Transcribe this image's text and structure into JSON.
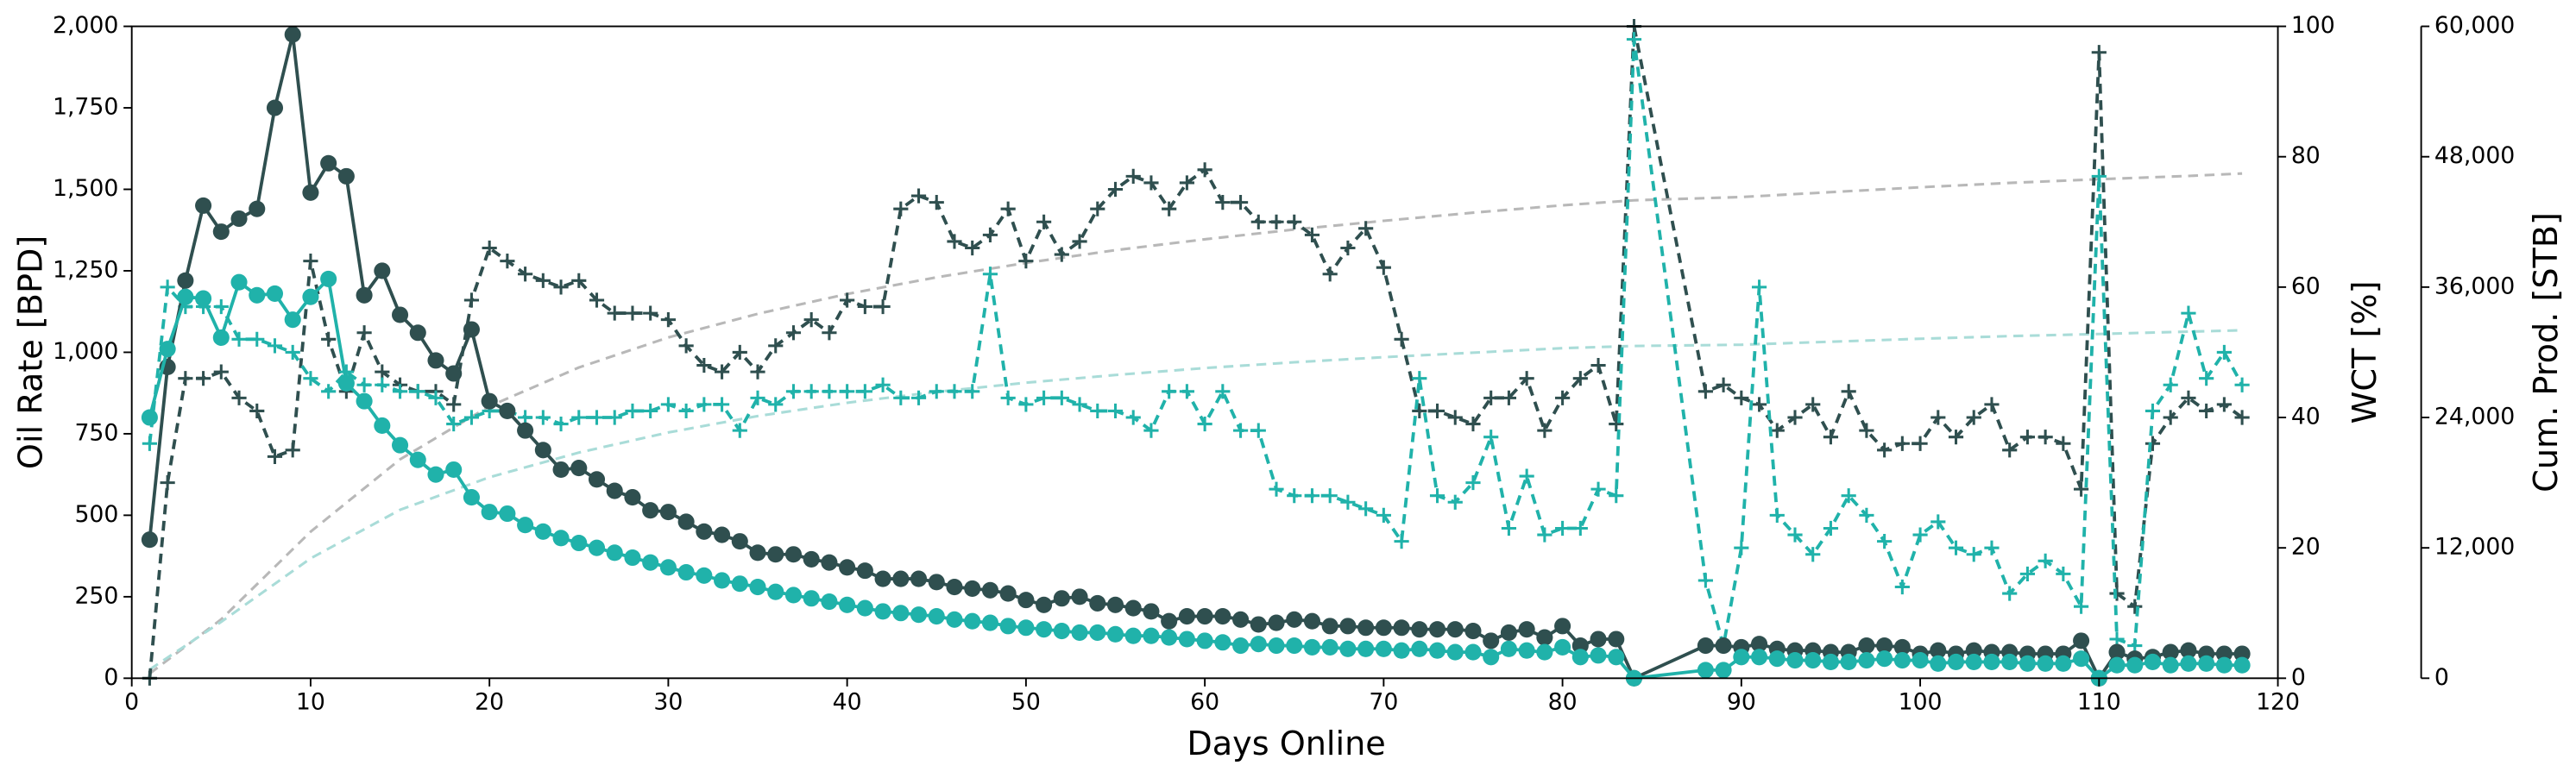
{
  "chart_data": {
    "type": "line",
    "xlabel": "Days Online",
    "ylabel": "Oil Rate [BPD]",
    "y2label": "WCT [%]",
    "y3label": "Cum. Prod. [STB]",
    "xlim": [
      0,
      120
    ],
    "xticks": [
      0,
      10,
      20,
      30,
      40,
      50,
      60,
      70,
      80,
      90,
      100,
      110,
      120
    ],
    "ylim": [
      0,
      2000
    ],
    "yticks": [
      0,
      250,
      500,
      750,
      {
        "value": 1000,
        "label": "1,000"
      },
      {
        "value": 1250,
        "label": "1,250"
      },
      {
        "value": 1500,
        "label": "1,500"
      },
      {
        "value": 1750,
        "label": "1,750"
      },
      {
        "value": 2000,
        "label": "2,000"
      }
    ],
    "y2lim": [
      0,
      100
    ],
    "y2ticks": [
      0,
      20,
      40,
      60,
      80,
      100
    ],
    "y3lim": [
      0,
      60000
    ],
    "y3ticks": [
      0,
      {
        "value": 12000,
        "label": "12,000"
      },
      {
        "value": 24000,
        "label": "24,000"
      },
      {
        "value": 36000,
        "label": "36,000"
      },
      {
        "value": 48000,
        "label": "48,000"
      },
      {
        "value": 60000,
        "label": "60,000"
      }
    ],
    "grid": false,
    "x": [
      1,
      2,
      3,
      4,
      5,
      6,
      7,
      8,
      9,
      10,
      11,
      12,
      13,
      14,
      15,
      16,
      17,
      18,
      19,
      20,
      21,
      22,
      23,
      24,
      25,
      26,
      27,
      28,
      29,
      30,
      31,
      32,
      33,
      34,
      35,
      36,
      37,
      38,
      39,
      40,
      41,
      42,
      43,
      44,
      45,
      46,
      47,
      48,
      49,
      50,
      51,
      52,
      53,
      54,
      55,
      56,
      57,
      58,
      59,
      60,
      61,
      62,
      63,
      64,
      65,
      66,
      67,
      68,
      69,
      70,
      71,
      72,
      73,
      74,
      75,
      76,
      77,
      78,
      79,
      80,
      81,
      82,
      83,
      84,
      88,
      89,
      90,
      91,
      92,
      93,
      94,
      95,
      96,
      97,
      98,
      99,
      100,
      101,
      102,
      103,
      104,
      105,
      106,
      107,
      108,
      109,
      110,
      111,
      112,
      113,
      114,
      115,
      116,
      117,
      118
    ],
    "series": [
      {
        "color": "#b8b8b8",
        "axis": "y3",
        "marker": "none",
        "linestyle": "dashed",
        "x": [
          1,
          5,
          10,
          15,
          20,
          25,
          30,
          35,
          40,
          45,
          50,
          55,
          60,
          65,
          70,
          75,
          80,
          84,
          90,
          95,
          100,
          105,
          110,
          115,
          118
        ],
        "values": [
          425,
          5420,
          13485,
          20145,
          25035,
          28600,
          31365,
          33540,
          35360,
          36900,
          38225,
          39400,
          40400,
          41300,
          42100,
          42850,
          43530,
          43990,
          44290,
          44740,
          45190,
          45590,
          45930,
          46230,
          46455
        ]
      },
      {
        "color": "#a9dcd8",
        "axis": "y3",
        "marker": "none",
        "linestyle": "dashed",
        "x": [
          1,
          5,
          10,
          15,
          20,
          25,
          30,
          35,
          40,
          45,
          50,
          55,
          60,
          65,
          70,
          75,
          80,
          84,
          90,
          95,
          100,
          105,
          110,
          115,
          118
        ],
        "values": [
          800,
          5190,
          11030,
          15500,
          18500,
          20770,
          22620,
          24130,
          25355,
          26360,
          27200,
          27910,
          28550,
          29080,
          29550,
          29965,
          30380,
          30580,
          30695,
          30975,
          31245,
          31490,
          31685,
          31900,
          32025
        ]
      },
      {
        "color": "#2f4f4f",
        "axis": "y2",
        "marker": "plus",
        "linestyle": "dashed",
        "values": [
          0,
          30,
          46,
          46,
          47,
          43,
          41,
          34,
          35,
          64,
          52,
          44,
          53,
          47,
          45,
          44,
          44,
          42,
          58,
          66,
          64,
          62,
          61,
          60,
          61,
          58,
          56,
          56,
          56,
          55,
          51,
          48,
          47,
          50,
          47,
          51,
          53,
          55,
          53,
          58,
          57,
          57,
          72,
          74,
          73,
          67,
          66,
          68,
          72,
          64,
          70,
          65,
          67,
          72,
          75,
          77,
          76,
          72,
          76,
          78,
          73,
          73,
          70,
          70,
          70,
          68,
          62,
          66,
          69,
          63,
          52,
          41,
          41,
          40,
          39,
          43,
          43,
          46,
          38,
          43,
          46,
          48,
          39,
          100,
          44,
          45,
          43,
          42,
          38,
          40,
          42,
          37,
          44,
          38,
          35,
          36,
          36,
          40,
          37,
          40,
          42,
          35,
          37,
          37,
          36,
          29,
          96,
          13,
          11,
          36,
          40,
          43,
          41,
          42,
          40
        ]
      },
      {
        "color": "#20b2aa",
        "axis": "y2",
        "marker": "plus",
        "linestyle": "dashed",
        "values": [
          36,
          60,
          57,
          57,
          57,
          52,
          52,
          51,
          50,
          46,
          44,
          47,
          45,
          45,
          44,
          44,
          43,
          39,
          40,
          41,
          41,
          40,
          40,
          39,
          40,
          40,
          40,
          41,
          41,
          42,
          41,
          42,
          42,
          38,
          43,
          42,
          44,
          44,
          44,
          44,
          44,
          45,
          43,
          43,
          44,
          44,
          44,
          62,
          43,
          42,
          43,
          43,
          42,
          41,
          41,
          40,
          38,
          44,
          44,
          39,
          44,
          38,
          38,
          29,
          28,
          28,
          28,
          27,
          26,
          25,
          21,
          46,
          28,
          27,
          30,
          37,
          23,
          31,
          22,
          23,
          23,
          29,
          28,
          98,
          15,
          5,
          20,
          60,
          25,
          22,
          19,
          23,
          28,
          25,
          21,
          14,
          22,
          24,
          20,
          19,
          20,
          13,
          16,
          18,
          16,
          11,
          77,
          6,
          5,
          41,
          45,
          56,
          46,
          50,
          45
        ]
      },
      {
        "color": "#2f4f4f",
        "axis": "y",
        "marker": "circle",
        "linestyle": "solid",
        "values": [
          425,
          955,
          1220,
          1450,
          1370,
          1410,
          1440,
          1750,
          1975,
          1490,
          1580,
          1540,
          1175,
          1250,
          1115,
          1060,
          975,
          935,
          1070,
          850,
          820,
          760,
          700,
          640,
          645,
          610,
          575,
          555,
          515,
          510,
          480,
          450,
          440,
          420,
          385,
          380,
          380,
          365,
          355,
          340,
          330,
          305,
          305,
          305,
          295,
          280,
          275,
          270,
          260,
          240,
          225,
          245,
          250,
          230,
          225,
          215,
          205,
          175,
          190,
          190,
          190,
          180,
          165,
          170,
          180,
          175,
          160,
          160,
          155,
          155,
          155,
          150,
          150,
          150,
          145,
          115,
          140,
          150,
          125,
          160,
          100,
          120,
          120,
          0,
          100,
          100,
          95,
          105,
          90,
          85,
          85,
          80,
          80,
          100,
          100,
          95,
          75,
          85,
          75,
          85,
          80,
          80,
          75,
          75,
          75,
          115,
          0,
          80,
          60,
          65,
          80,
          85,
          75,
          75,
          75
        ]
      },
      {
        "color": "#20b2aa",
        "axis": "y",
        "marker": "circle",
        "linestyle": "solid",
        "values": [
          800,
          1010,
          1170,
          1165,
          1045,
          1215,
          1175,
          1180,
          1100,
          1170,
          1225,
          905,
          850,
          775,
          715,
          670,
          625,
          640,
          555,
          510,
          505,
          470,
          450,
          430,
          415,
          400,
          385,
          370,
          355,
          340,
          325,
          315,
          300,
          290,
          280,
          265,
          255,
          245,
          235,
          225,
          215,
          205,
          200,
          195,
          190,
          180,
          175,
          170,
          160,
          155,
          150,
          145,
          140,
          140,
          135,
          130,
          130,
          125,
          120,
          115,
          110,
          100,
          105,
          100,
          100,
          95,
          95,
          90,
          90,
          90,
          85,
          90,
          85,
          80,
          80,
          65,
          90,
          85,
          80,
          95,
          65,
          70,
          65,
          0,
          25,
          25,
          65,
          65,
          60,
          55,
          55,
          50,
          50,
          55,
          60,
          55,
          55,
          45,
          50,
          50,
          50,
          50,
          45,
          45,
          45,
          60,
          0,
          40,
          40,
          50,
          40,
          45,
          45,
          40,
          40
        ]
      }
    ]
  }
}
